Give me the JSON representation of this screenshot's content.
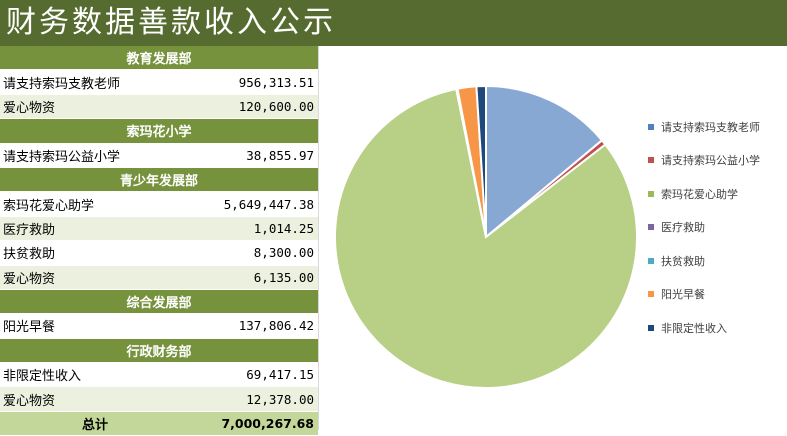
{
  "title": "财务数据善款收入公示",
  "sections": [
    {
      "name": "教育发展部",
      "items": [
        {
          "label": "请支持索玛支教老师",
          "value": "956,313.51"
        },
        {
          "label": "爱心物资",
          "value": "120,600.00"
        }
      ]
    },
    {
      "name": "索玛花小学",
      "items": [
        {
          "label": "请支持索玛公益小学",
          "value": "38,855.97"
        }
      ]
    },
    {
      "name": "青少年发展部",
      "items": [
        {
          "label": "索玛花爱心助学",
          "value": "5,649,447.38"
        },
        {
          "label": "医疗救助",
          "value": "1,014.25"
        },
        {
          "label": "扶贫救助",
          "value": "8,300.00"
        },
        {
          "label": "爱心物资",
          "value": "6,135.00"
        }
      ]
    },
    {
      "name": "综合发展部",
      "items": [
        {
          "label": "阳光早餐",
          "value": "137,806.42"
        }
      ]
    },
    {
      "name": "行政财务部",
      "items": [
        {
          "label": "非限定性收入",
          "value": "69,417.15"
        },
        {
          "label": "爱心物资",
          "value": "12,378.00"
        }
      ]
    }
  ],
  "total": {
    "label": "总计",
    "value": "7,000,267.68"
  },
  "chart_data": {
    "type": "pie",
    "legend_position": "right",
    "categories": [
      "请支持索玛支教老师",
      "请支持索玛公益小学",
      "索玛花爱心助学",
      "医疗救助",
      "扶贫救助",
      "阳光早餐",
      "非限定性收入"
    ],
    "values": [
      956313.51,
      38855.97,
      5649447.38,
      1014.25,
      8300.0,
      137806.42,
      69417.15
    ],
    "colors": [
      "#4f81bd",
      "#c0504d",
      "#9bbb59",
      "#8064a2",
      "#4bacc6",
      "#f79646",
      "#1f497d"
    ]
  }
}
